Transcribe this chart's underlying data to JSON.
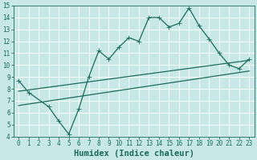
{
  "xlabel": "Humidex (Indice chaleur)",
  "bg_color": "#c8e8e8",
  "grid_color": "#ffffff",
  "line_color": "#1a6b5a",
  "xlim": [
    -0.5,
    23.5
  ],
  "ylim": [
    4,
    15
  ],
  "yticks": [
    4,
    5,
    6,
    7,
    8,
    9,
    10,
    11,
    12,
    13,
    14,
    15
  ],
  "xticks": [
    0,
    1,
    2,
    3,
    4,
    5,
    6,
    7,
    8,
    9,
    10,
    11,
    12,
    13,
    14,
    15,
    16,
    17,
    18,
    19,
    20,
    21,
    22,
    23
  ],
  "line1_x": [
    0,
    1,
    3,
    4,
    5,
    6,
    7,
    8,
    9,
    10,
    11,
    12,
    13,
    14,
    15,
    16,
    17,
    18,
    19,
    20,
    21,
    22,
    23
  ],
  "line1_y": [
    8.7,
    7.7,
    6.5,
    5.3,
    4.2,
    6.3,
    9.0,
    11.2,
    10.5,
    11.5,
    12.3,
    12.0,
    14.0,
    14.0,
    13.2,
    13.5,
    14.8,
    13.3,
    12.2,
    11.0,
    10.0,
    9.7,
    10.5
  ],
  "line2_x": [
    0,
    23
  ],
  "line2_y": [
    7.8,
    10.4
  ],
  "line3_x": [
    0,
    23
  ],
  "line3_y": [
    6.6,
    9.5
  ],
  "font_family": "monospace",
  "tick_fontsize": 5.5,
  "xlabel_fontsize": 7.5,
  "linewidth": 0.9,
  "markersize": 2.2
}
